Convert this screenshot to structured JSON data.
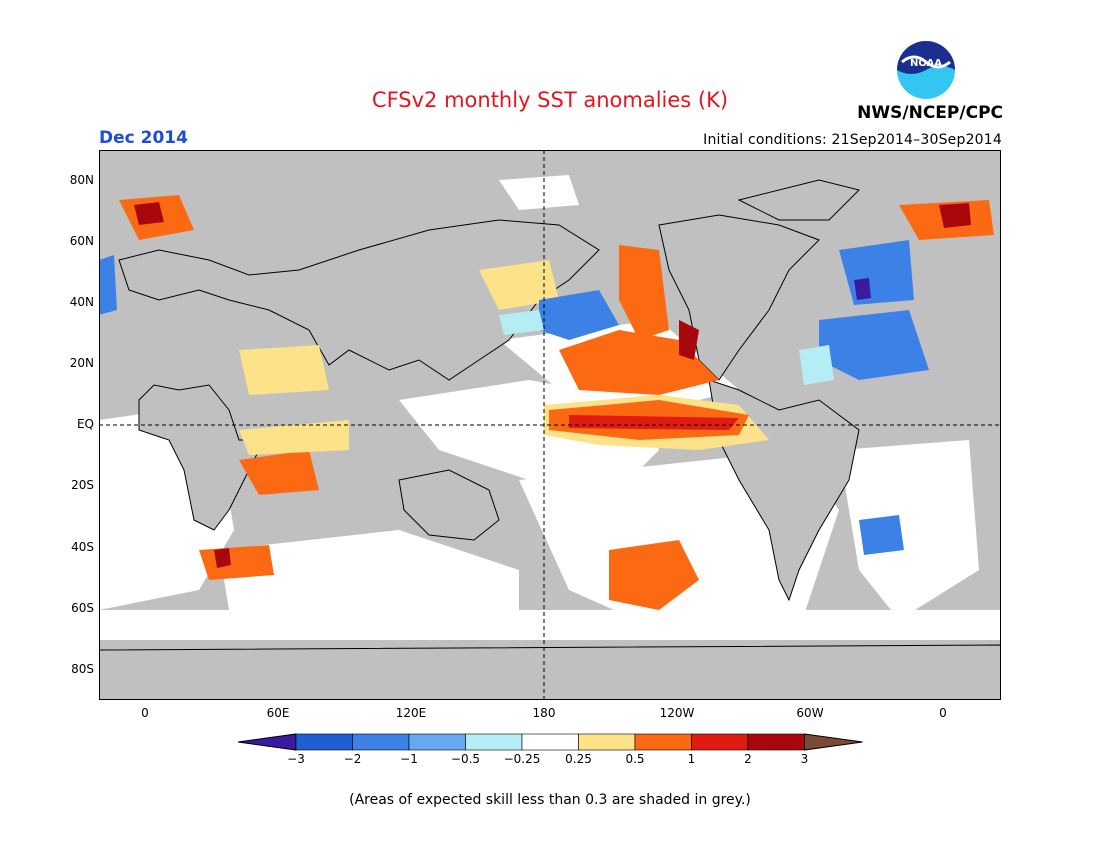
{
  "title": "CFSv2 monthly SST anomalies (K)",
  "month": "Dec 2014",
  "initial_conditions": "Initial conditions: 21Sep2014–30Sep2014",
  "agency": "NWS/NCEP/CPC",
  "logo_text": "NOAA",
  "lat_labels": [
    "80N",
    "60N",
    "40N",
    "20N",
    "EQ",
    "20S",
    "40S",
    "60S",
    "80S"
  ],
  "lon_labels": [
    "0",
    "60E",
    "120E",
    "180",
    "120W",
    "60W",
    "0"
  ],
  "colorbar": {
    "labels": [
      "−3",
      "−2",
      "−1",
      "−0.5",
      "−0.25",
      "0.25",
      "0.5",
      "1",
      "2",
      "3"
    ],
    "colors": [
      "#3a1aa0",
      "#1f5fd0",
      "#3c82e6",
      "#66a9f0",
      "#b4eef4",
      "#ffffff",
      "#fde28a",
      "#fb6a12",
      "#e01c10",
      "#a8080c",
      "#7a4a35"
    ]
  },
  "colors": {
    "land": "#c0c0c0",
    "title": "#e8141b",
    "month": "#1f4fcf"
  },
  "note": "(Areas of expected skill less than 0.3 are shaded in grey.)"
}
